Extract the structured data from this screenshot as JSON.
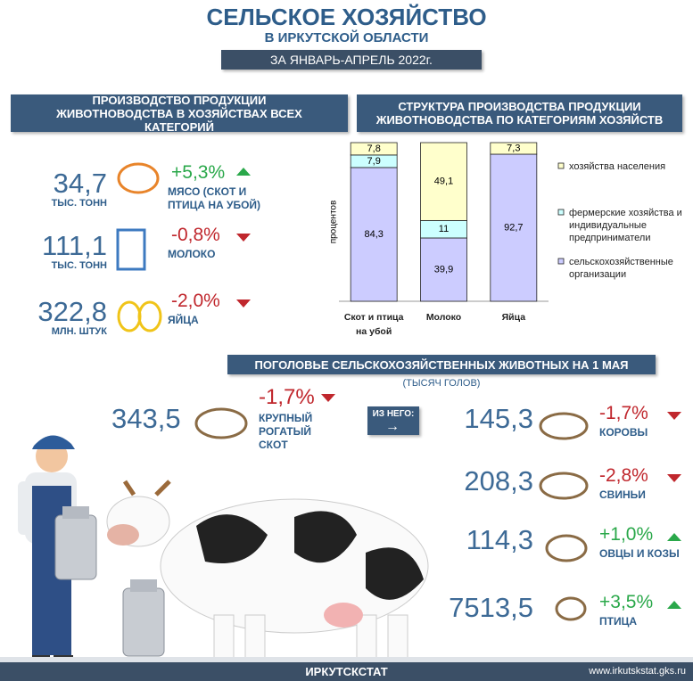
{
  "header": {
    "title": "СЕЛЬСКОЕ ХОЗЯЙСТВО",
    "subtitle": "В ИРКУТСКОЙ ОБЛАСТИ",
    "period": "ЗА ЯНВАРЬ-АПРЕЛЬ 2022г."
  },
  "production": {
    "heading": "ПРОИЗВОДСТВО ПРОДУКЦИИ ЖИВОТНОВОДСТВА В ХОЗЯЙСТВАХ ВСЕХ КАТЕГОРИЙ",
    "items": [
      {
        "value": "34,7",
        "unit": "ТЫС. ТОНН",
        "change": "+5,3%",
        "label": "МЯСО (СКОТ И ПТИЦА НА УБОЙ)"
      },
      {
        "value": "111,1",
        "unit": "ТЫС. ТОНН",
        "change": "-0,8%",
        "label": "МОЛОКО"
      },
      {
        "value": "322,8",
        "unit": "МЛН. ШТУК",
        "change": "-2,0%",
        "label": "ЯЙЦА"
      }
    ]
  },
  "chart_data": {
    "type": "stacked-bar",
    "title": "СТРУКТУРА ПРОИЗВОДСТВА ПРОДУКЦИИ ЖИВОТНОВОДСТВА ПО КАТЕГОРИЯМ ХОЗЯЙСТВ",
    "y_label": "процентов",
    "categories": [
      "Скот и птица на убой",
      "Молоко",
      "Яйца"
    ],
    "ylim": [
      0,
      100
    ],
    "series": [
      {
        "name": "сельскохозяйственные организации",
        "color": "#ccccff",
        "values": [
          84.3,
          39.9,
          92.7
        ],
        "value_labels": [
          "84,3",
          "39,9",
          "92,7"
        ]
      },
      {
        "name": "фермерские хозяйства и индивидуальные предприниматели",
        "color": "#ccffff",
        "values": [
          7.9,
          11,
          null
        ],
        "value_labels": [
          "7,9",
          "11",
          null
        ]
      },
      {
        "name": "хозяйства населения",
        "color": "#ffffcc",
        "values": [
          7.8,
          49.1,
          7.3
        ],
        "value_labels": [
          "7,8",
          "49,1",
          "7,3"
        ]
      }
    ]
  },
  "livestock": {
    "heading": "ПОГОЛОВЬЕ СЕЛЬСКОХОЗЯЙСТВЕННЫХ ЖИВОТНЫХ НА 1 МАЯ",
    "unit": "(ТЫСЯЧ ГОЛОВ)",
    "total": {
      "value": "343,5",
      "change": "-1,7%",
      "label": "КРУПНЫЙ РОГАТЫЙ СКОТ"
    },
    "badge": "ИЗ НЕГО:",
    "items": [
      {
        "value": "145,3",
        "change": "-1,7%",
        "label": "КОРОВЫ"
      },
      {
        "value": "208,3",
        "change": "-2,8%",
        "label": "СВИНЬИ"
      },
      {
        "value": "114,3",
        "change": "+1,0%",
        "label": "ОВЦЫ И КОЗЫ"
      },
      {
        "value": "7513,5",
        "change": "+3,5%",
        "label": "ПТИЦА"
      }
    ]
  },
  "footer": {
    "name": "ИРКУТСКСТАТ",
    "url": "www.irkutskstat.gks.ru"
  }
}
